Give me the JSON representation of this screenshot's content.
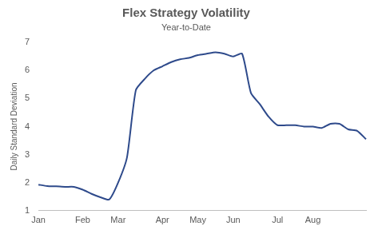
{
  "chart_data": {
    "type": "line",
    "title": "Flex Strategy Volatility",
    "subtitle": "Year-to-Date",
    "y_label": "Daily Standard Deviation",
    "categories": [
      "Jan",
      null,
      null,
      null,
      null,
      "Feb",
      null,
      null,
      null,
      "Mar",
      null,
      null,
      null,
      null,
      "Apr",
      null,
      null,
      null,
      "May",
      null,
      null,
      null,
      "Jun",
      null,
      null,
      null,
      null,
      "Jul",
      null,
      null,
      null,
      "Aug",
      null,
      null,
      null,
      null,
      null,
      null
    ],
    "values": [
      1.93,
      1.88,
      1.87,
      1.85,
      1.85,
      1.75,
      1.6,
      1.48,
      1.4,
      2.0,
      2.9,
      5.3,
      5.7,
      6.0,
      6.15,
      6.3,
      6.4,
      6.45,
      6.55,
      6.6,
      6.65,
      6.6,
      6.5,
      6.6,
      5.2,
      4.8,
      4.35,
      4.05,
      4.05,
      4.05,
      4.0,
      4.0,
      3.95,
      4.1,
      4.1,
      3.9,
      3.85,
      3.55
    ],
    "color": "#2e4a8b",
    "ylim": [
      1,
      7
    ],
    "yticks": [
      1,
      2,
      3,
      4,
      5,
      6,
      7
    ],
    "grid": false
  }
}
